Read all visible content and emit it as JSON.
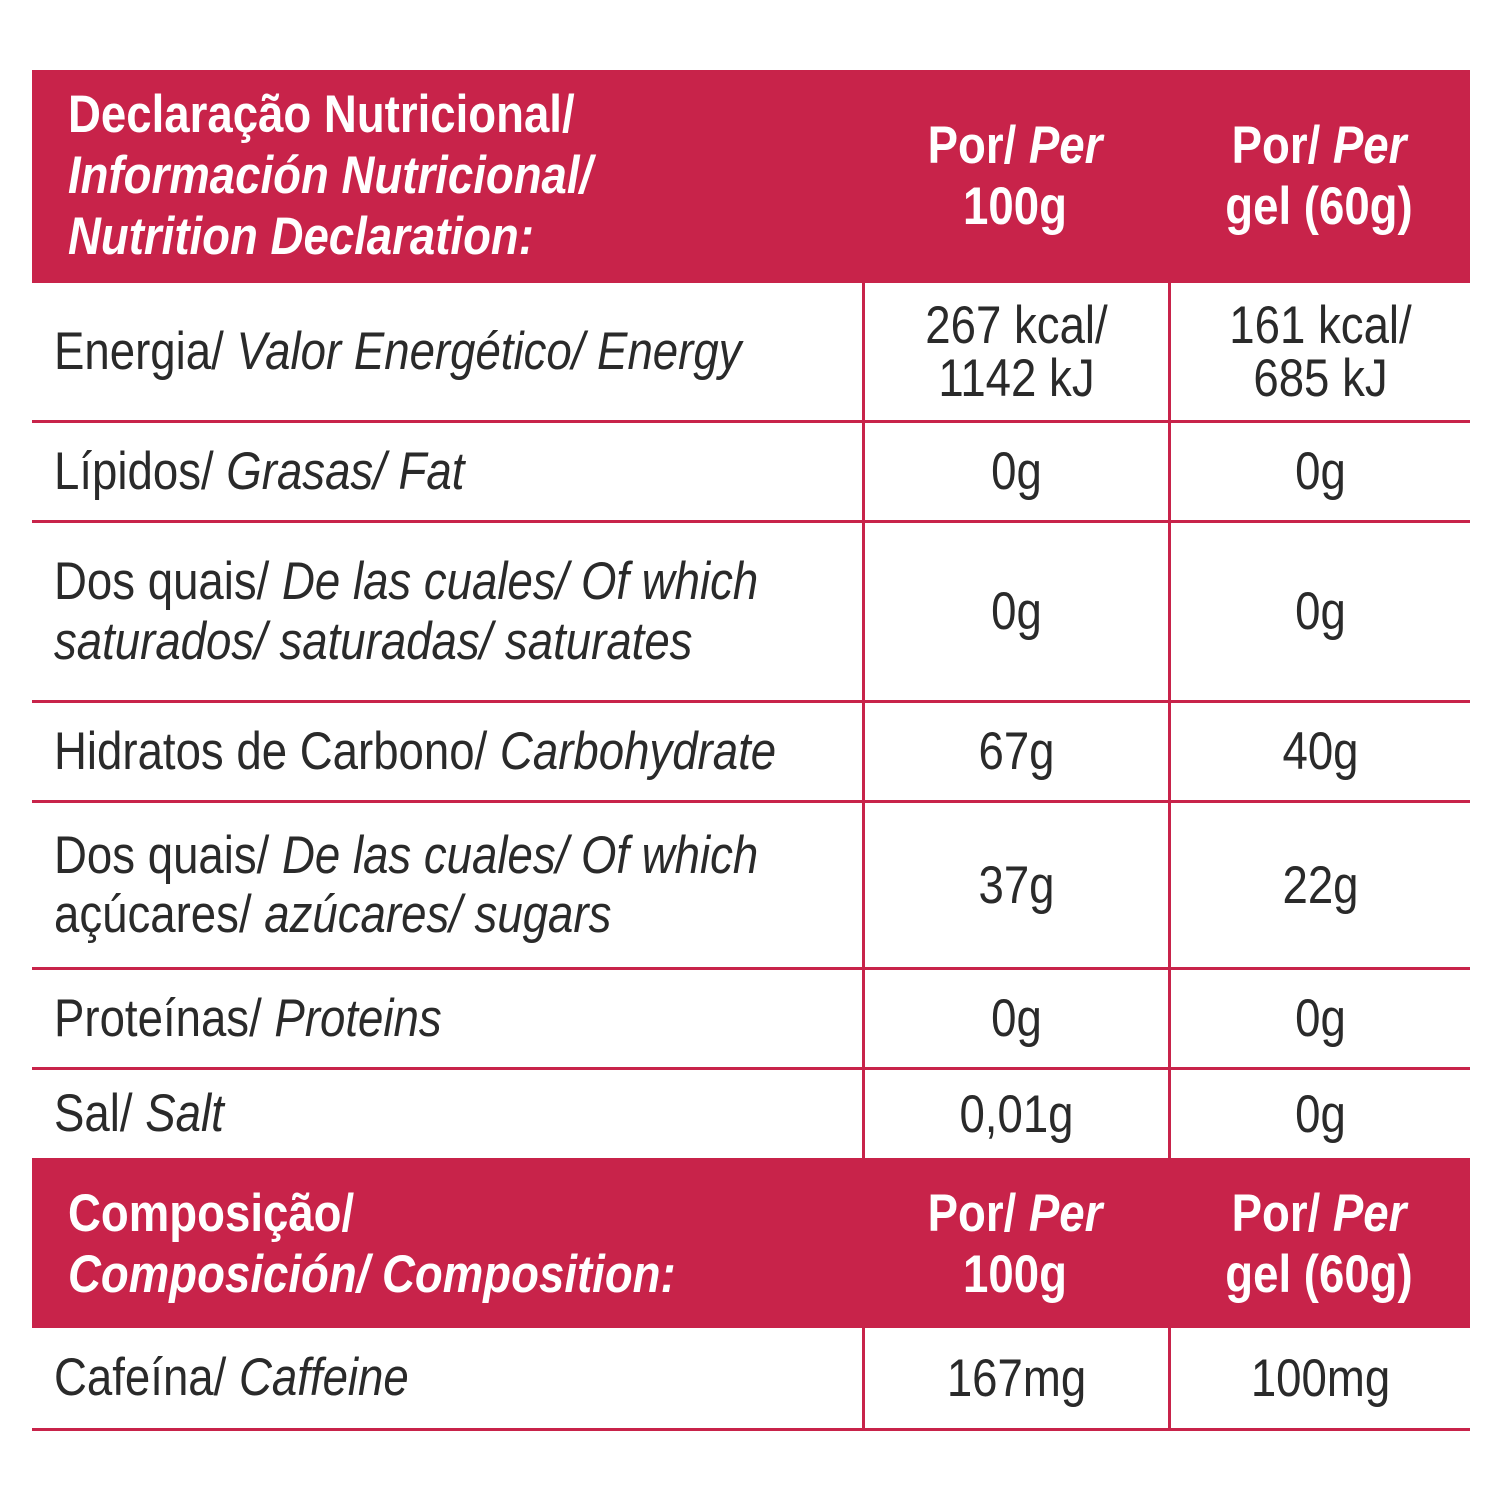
{
  "sections": [
    {
      "header": {
        "label": [
          [
            {
              "text": "Declaração Nutricional/",
              "style": "normal"
            }
          ],
          [
            {
              "text": "Información Nutricional/",
              "style": "italic"
            }
          ],
          [
            {
              "text": "Nutrition Declaration:",
              "style": "italic"
            }
          ]
        ],
        "per_100g": [
          [
            {
              "text": "Por/ ",
              "style": "normal"
            },
            {
              "text": "Per",
              "style": "italic"
            }
          ],
          [
            {
              "text": "100g",
              "style": "normal"
            }
          ]
        ],
        "per_gel": [
          [
            {
              "text": "Por/ ",
              "style": "normal"
            },
            {
              "text": "Per",
              "style": "italic"
            }
          ],
          [
            {
              "text": "gel (60g)",
              "style": "normal"
            }
          ]
        ]
      },
      "rows": [
        {
          "label": [
            [
              {
                "text": "Energia/ ",
                "style": "normal"
              },
              {
                "text": "Valor Energético/ Energy",
                "style": "italic"
              }
            ]
          ],
          "per_100g": [
            [
              {
                "text": "267 kcal/",
                "style": "normal"
              }
            ],
            [
              {
                "text": "1142 kJ",
                "style": "normal"
              }
            ]
          ],
          "per_gel": [
            [
              {
                "text": "161 kcal/",
                "style": "normal"
              }
            ],
            [
              {
                "text": "685 kJ",
                "style": "normal"
              }
            ]
          ]
        },
        {
          "label": [
            [
              {
                "text": "Lípidos/ ",
                "style": "normal"
              },
              {
                "text": "Grasas/ Fat",
                "style": "italic"
              }
            ]
          ],
          "per_100g": [
            [
              {
                "text": "0g",
                "style": "normal"
              }
            ]
          ],
          "per_gel": [
            [
              {
                "text": "0g",
                "style": "normal"
              }
            ]
          ]
        },
        {
          "label": [
            [
              {
                "text": "Dos quais/ ",
                "style": "normal"
              },
              {
                "text": "De las cuales/ Of which",
                "style": "italic"
              }
            ],
            [
              {
                "text": "saturados/ saturadas/ saturates",
                "style": "italic"
              }
            ]
          ],
          "per_100g": [
            [
              {
                "text": "0g",
                "style": "normal"
              }
            ]
          ],
          "per_gel": [
            [
              {
                "text": "0g",
                "style": "normal"
              }
            ]
          ]
        },
        {
          "label": [
            [
              {
                "text": "Hidratos de Carbono/ ",
                "style": "normal"
              },
              {
                "text": "Carbohydrate",
                "style": "italic"
              }
            ]
          ],
          "per_100g": [
            [
              {
                "text": "67g",
                "style": "normal"
              }
            ]
          ],
          "per_gel": [
            [
              {
                "text": "40g",
                "style": "normal"
              }
            ]
          ]
        },
        {
          "label": [
            [
              {
                "text": "Dos quais/ ",
                "style": "normal"
              },
              {
                "text": "De las cuales/ Of which",
                "style": "italic"
              }
            ],
            [
              {
                "text": "açúcares/ ",
                "style": "normal"
              },
              {
                "text": "azúcares/ sugars",
                "style": "italic"
              }
            ]
          ],
          "per_100g": [
            [
              {
                "text": "37g",
                "style": "normal"
              }
            ]
          ],
          "per_gel": [
            [
              {
                "text": "22g",
                "style": "normal"
              }
            ]
          ]
        },
        {
          "label": [
            [
              {
                "text": "Proteínas/ ",
                "style": "normal"
              },
              {
                "text": "Proteins",
                "style": "italic"
              }
            ]
          ],
          "per_100g": [
            [
              {
                "text": "0g",
                "style": "normal"
              }
            ]
          ],
          "per_gel": [
            [
              {
                "text": "0g",
                "style": "normal"
              }
            ]
          ]
        },
        {
          "label": [
            [
              {
                "text": "Sal/ ",
                "style": "normal"
              },
              {
                "text": "Salt",
                "style": "italic"
              }
            ]
          ],
          "per_100g": [
            [
              {
                "text": "0,01g",
                "style": "normal"
              }
            ]
          ],
          "per_gel": [
            [
              {
                "text": "0g",
                "style": "normal"
              }
            ]
          ]
        }
      ]
    },
    {
      "header": {
        "label": [
          [
            {
              "text": "Composição/",
              "style": "normal"
            }
          ],
          [
            {
              "text": "Composición/ Composition:",
              "style": "italic"
            }
          ]
        ],
        "per_100g": [
          [
            {
              "text": "Por/ ",
              "style": "normal"
            },
            {
              "text": "Per",
              "style": "italic"
            }
          ],
          [
            {
              "text": "100g",
              "style": "normal"
            }
          ]
        ],
        "per_gel": [
          [
            {
              "text": "Por/ ",
              "style": "normal"
            },
            {
              "text": "Per",
              "style": "italic"
            }
          ],
          [
            {
              "text": "gel (60g)",
              "style": "normal"
            }
          ]
        ]
      },
      "rows": [
        {
          "label": [
            [
              {
                "text": "Cafeína/ ",
                "style": "normal"
              },
              {
                "text": "Caffeine",
                "style": "italic"
              }
            ]
          ],
          "per_100g": [
            [
              {
                "text": "167mg",
                "style": "normal"
              }
            ]
          ],
          "per_gel": [
            [
              {
                "text": "100mg",
                "style": "normal"
              }
            ]
          ]
        }
      ]
    }
  ]
}
